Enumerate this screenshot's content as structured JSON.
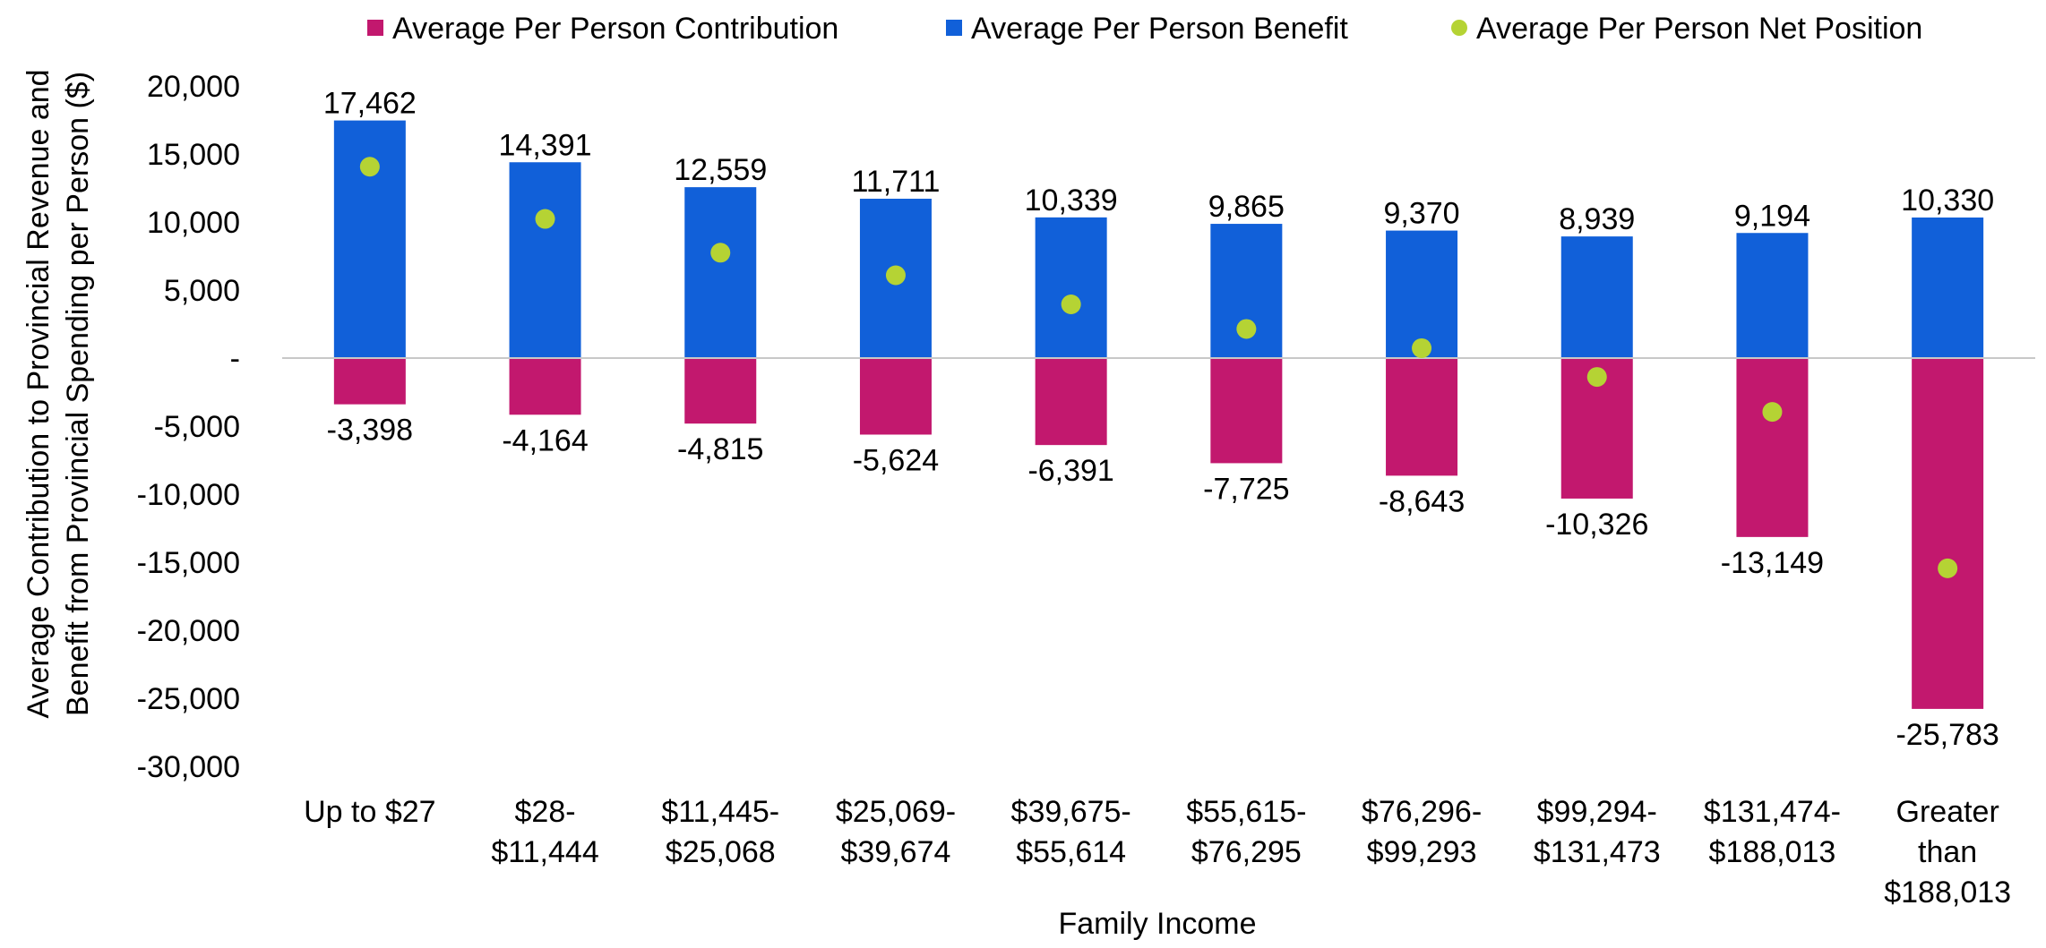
{
  "chart_data": {
    "type": "bar",
    "stacked": true,
    "xlabel": "Family Income",
    "ylabel_lines": [
      "Average Contribution to Provincial Revenue and",
      "Benefit from Provincial Spending per Person ($)"
    ],
    "ylim": [
      -30000,
      20000
    ],
    "yticks": [
      20000,
      15000,
      10000,
      5000,
      0,
      -5000,
      -10000,
      -15000,
      -20000,
      -25000,
      -30000
    ],
    "ytick_labels": [
      "20,000",
      "15,000",
      "10,000",
      "5,000",
      "-",
      "-5,000",
      "-10,000",
      "-15,000",
      "-20,000",
      "-25,000",
      "-30,000"
    ],
    "grid": false,
    "legend_position": "top",
    "categories": [
      [
        "Up to $27"
      ],
      [
        "$28-",
        "$11,444"
      ],
      [
        "$11,445-",
        "$25,068"
      ],
      [
        "$25,069-",
        "$39,674"
      ],
      [
        "$39,675-",
        "$55,614"
      ],
      [
        "$55,615-",
        "$76,295"
      ],
      [
        "$76,296-",
        "$99,293"
      ],
      [
        "$99,294-",
        "$131,473"
      ],
      [
        "$131,474-",
        "$188,013"
      ],
      [
        "Greater",
        "than",
        "$188,013"
      ]
    ],
    "series": [
      {
        "name": "Average Per Person Contribution",
        "kind": "bar",
        "color": "#C2186E",
        "values": [
          -3398,
          -4164,
          -4815,
          -5624,
          -6391,
          -7725,
          -8643,
          -10326,
          -13149,
          -25783
        ],
        "labels": [
          "-3,398",
          "-4,164",
          "-4,815",
          "-5,624",
          "-6,391",
          "-7,725",
          "-8,643",
          "-10,326",
          "-13,149",
          "-25,783"
        ]
      },
      {
        "name": "Average Per Person Benefit",
        "kind": "bar",
        "color": "#1160D9",
        "values": [
          17462,
          14391,
          12559,
          11711,
          10339,
          9865,
          9370,
          8939,
          9194,
          10330
        ],
        "labels": [
          "17,462",
          "14,391",
          "12,559",
          "11,711",
          "10,339",
          "9,865",
          "9,370",
          "8,939",
          "9,194",
          "10,330"
        ]
      },
      {
        "name": "Average Per Person Net Position",
        "kind": "scatter",
        "color": "#B5D334",
        "values": [
          14064,
          10227,
          7744,
          6087,
          3948,
          2140,
          727,
          -1387,
          -3955,
          -15453
        ]
      }
    ]
  }
}
